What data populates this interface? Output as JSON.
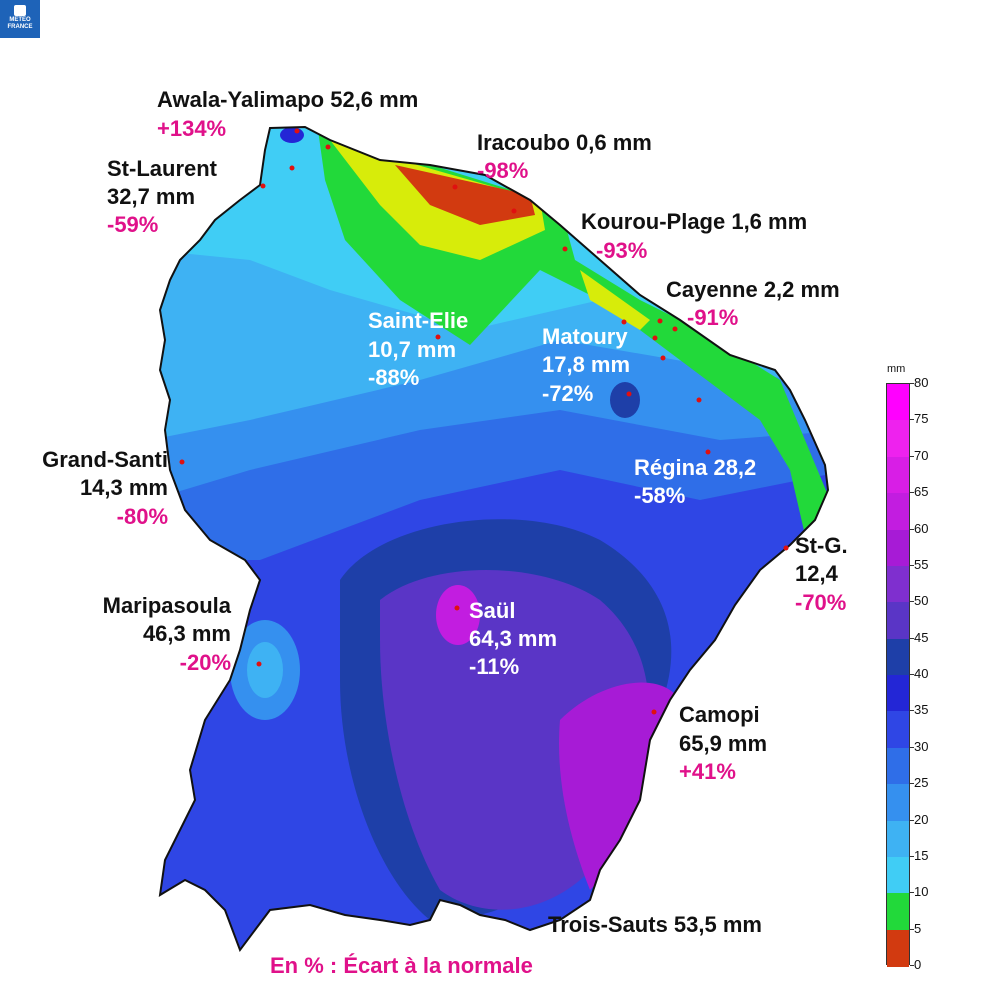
{
  "logo": {
    "text_line1": "METEO",
    "text_line2": "FRANCE"
  },
  "map": {
    "footer": "En % : Écart à la normale",
    "stations": [
      {
        "name": "Awala-Yalimapo 52,6 mm",
        "pct": "+134%"
      },
      {
        "name": "St-Laurent",
        "value": "32,7 mm",
        "pct": "-59%"
      },
      {
        "name": "Iracoubo 0,6 mm",
        "pct": "-98%"
      },
      {
        "name": "Kourou-Plage 1,6 mm",
        "pct": "-93%"
      },
      {
        "name": "Cayenne 2,2 mm",
        "pct": "-91%"
      },
      {
        "name": "Saint-Elie",
        "value": "10,7 mm",
        "pct": "-88%"
      },
      {
        "name": "Matoury",
        "value": "17,8 mm",
        "pct": "-72%"
      },
      {
        "name": "Grand-Santi",
        "value": "14,3 mm",
        "pct": "-80%"
      },
      {
        "name": "Régina 28,2",
        "pct": "-58%"
      },
      {
        "name": "St-G.",
        "value": "12,4",
        "pct": "-70%"
      },
      {
        "name": "Maripasoula",
        "value": "46,3 mm",
        "pct": "-20%"
      },
      {
        "name": "Saül",
        "value": "64,3 mm",
        "pct": "-11%"
      },
      {
        "name": "Camopi",
        "value": "65,9 mm",
        "pct": "+41%"
      },
      {
        "name": "Trois-Sauts 53,5 mm"
      }
    ]
  },
  "legend": {
    "unit": "mm",
    "ticks": [
      "80",
      "75",
      "70",
      "65",
      "60",
      "55",
      "50",
      "45",
      "40",
      "35",
      "30",
      "25",
      "20",
      "15",
      "10",
      "5",
      "0"
    ],
    "colors": [
      "#ff00ff",
      "#ee22ee",
      "#d81ee6",
      "#c21de0",
      "#a71bd6",
      "#7f2fcf",
      "#5a35c6",
      "#1e3fa8",
      "#2326d6",
      "#2f46e5",
      "#2f6ee8",
      "#3590ef",
      "#3eb2f3",
      "#40cdf5",
      "#22d93a",
      "#d7ec0a",
      "#d23a10"
    ]
  }
}
